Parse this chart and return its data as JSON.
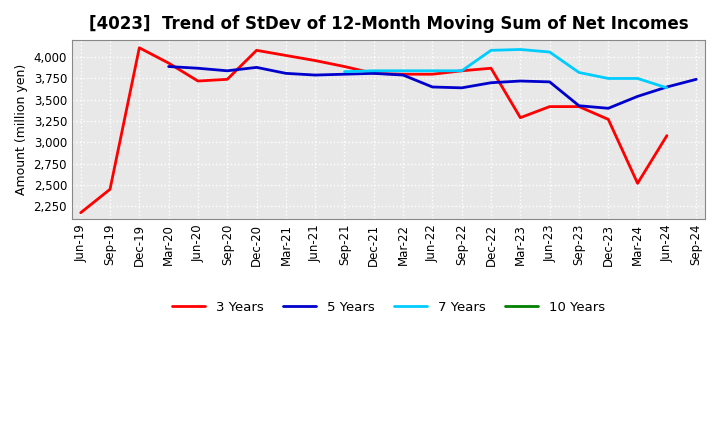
{
  "title": "[4023]  Trend of StDev of 12-Month Moving Sum of Net Incomes",
  "ylabel": "Amount (million yen)",
  "background_color": "#ffffff",
  "plot_bg_color": "#e8e8e8",
  "grid_color": "#ffffff",
  "x_labels": [
    "Jun-19",
    "Sep-19",
    "Dec-19",
    "Mar-20",
    "Jun-20",
    "Sep-20",
    "Dec-20",
    "Mar-21",
    "Jun-21",
    "Sep-21",
    "Dec-21",
    "Mar-22",
    "Jun-22",
    "Sep-22",
    "Dec-22",
    "Mar-23",
    "Jun-23",
    "Sep-23",
    "Dec-23",
    "Mar-24",
    "Jun-24",
    "Sep-24"
  ],
  "series": {
    "3 Years": {
      "color": "#ff0000",
      "values": [
        2175,
        2450,
        4110,
        3930,
        3720,
        3740,
        4080,
        4020,
        3960,
        3890,
        3810,
        3800,
        3800,
        3840,
        3870,
        3290,
        3420,
        3420,
        3270,
        2520,
        3080,
        null
      ]
    },
    "5 Years": {
      "color": "#0000cc",
      "values": [
        null,
        null,
        null,
        3890,
        3870,
        3840,
        3880,
        3810,
        3790,
        3800,
        3810,
        3790,
        3650,
        3640,
        3700,
        3720,
        3710,
        3430,
        3400,
        3540,
        3650,
        3740
      ]
    },
    "7 Years": {
      "color": "#00ccff",
      "values": [
        null,
        null,
        null,
        null,
        null,
        null,
        null,
        null,
        null,
        3830,
        3840,
        3840,
        3840,
        3840,
        4080,
        4090,
        4060,
        3820,
        3750,
        3750,
        3640,
        null
      ]
    },
    "10 Years": {
      "color": "#008000",
      "values": [
        null,
        null,
        null,
        null,
        null,
        null,
        null,
        null,
        null,
        null,
        null,
        null,
        null,
        null,
        null,
        null,
        null,
        null,
        null,
        null,
        3640,
        null
      ]
    }
  },
  "ylim": [
    2100,
    4200
  ],
  "yticks": [
    2250,
    2500,
    2750,
    3000,
    3250,
    3500,
    3750,
    4000
  ],
  "title_fontsize": 12,
  "axis_fontsize": 9,
  "tick_fontsize": 8.5,
  "line_width": 2.0
}
